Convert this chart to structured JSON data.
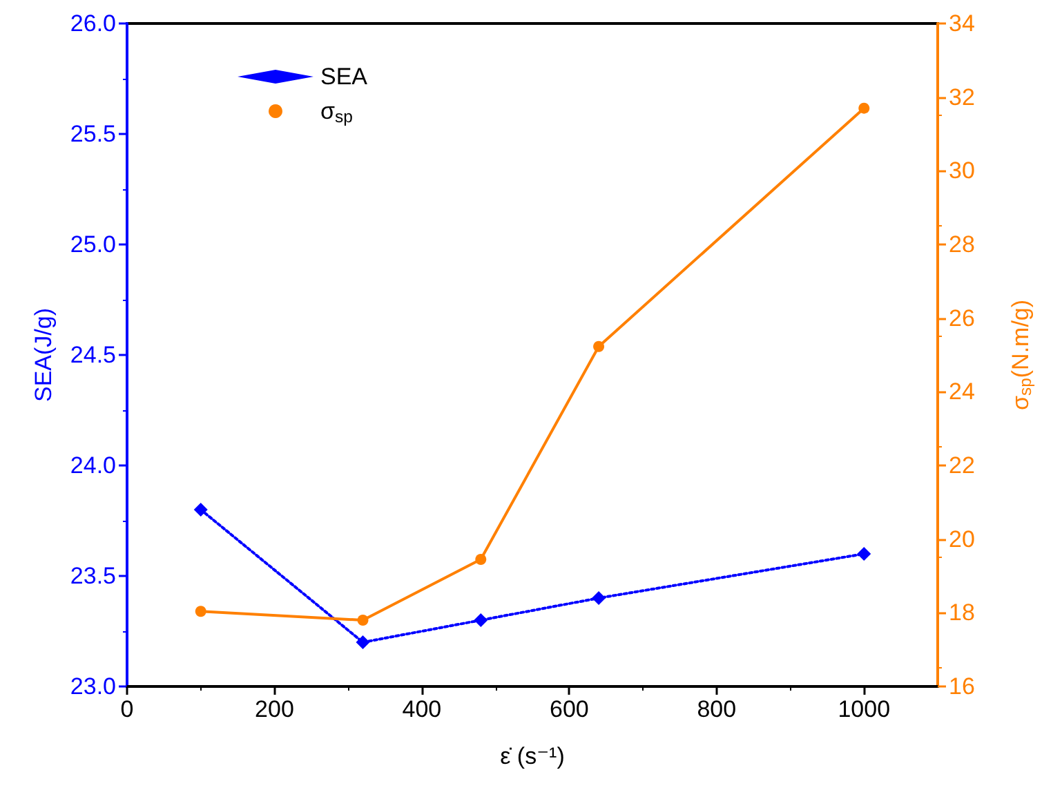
{
  "chart_data": {
    "type": "line",
    "xlabel": "ε̇ (s⁻¹)",
    "ylabel": "SEA(J/g)",
    "y2label": "σ$_{sp}$(N.m/g)",
    "x": [
      100,
      320,
      480,
      640,
      1000
    ],
    "series": [
      {
        "name": "SEA",
        "color": "#0000ff",
        "values": [
          23.8,
          23.2,
          23.3,
          23.4,
          23.6
        ],
        "marker": "diamond",
        "line_style": "dotted"
      },
      {
        "name": "σ$_{sp}$",
        "color": "#ff8000",
        "values": [
          18.04,
          17.8,
          19.45,
          25.23,
          31.7
        ],
        "marker": "circle",
        "line_style": "solid",
        "axis": "y2"
      }
    ],
    "xlim": [
      0,
      1100
    ],
    "xticks": [
      0,
      200,
      400,
      600,
      800,
      1000
    ],
    "ylim": [
      23,
      26
    ],
    "yticks": [
      {
        "value": 23,
        "label": "23.0"
      },
      23.5,
      {
        "value": 24,
        "label": "24.0"
      },
      24.5,
      {
        "value": 25,
        "label": "25.0"
      },
      25.5,
      {
        "value": 26,
        "label": "26.0"
      }
    ],
    "y2lim": [
      16,
      34
    ],
    "y2ticks": [
      16,
      18,
      20,
      22,
      24,
      26,
      28,
      30,
      32,
      34
    ],
    "legend": "top left",
    "grid": false
  }
}
